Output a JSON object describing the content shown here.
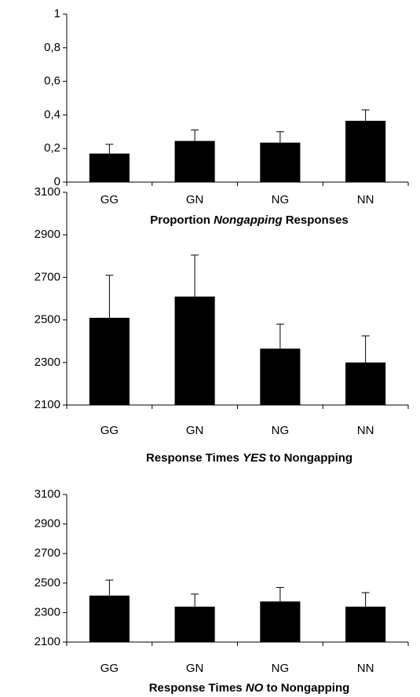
{
  "chart_data": [
    {
      "type": "bar",
      "title": [
        "Proportion",
        "Nongapping",
        "Responses"
      ],
      "title_italic": [
        false,
        true,
        false
      ],
      "categories": [
        "GG",
        "GN",
        "NG",
        "NN"
      ],
      "values": [
        0.17,
        0.245,
        0.235,
        0.365
      ],
      "errors": [
        0.055,
        0.065,
        0.065,
        0.065
      ],
      "color": "#000000",
      "ylim": [
        0,
        1
      ],
      "yticks": [
        0,
        {
          "value": 0.2,
          "label": "0,2"
        },
        {
          "value": 0.4,
          "label": "0,4"
        },
        {
          "value": 0.6,
          "label": "0,6"
        },
        {
          "value": 0.8,
          "label": "0,8"
        },
        1
      ]
    },
    {
      "type": "bar",
      "title": [
        "Response Times",
        "YES",
        "to Nongapping"
      ],
      "title_italic": [
        false,
        true,
        false
      ],
      "categories": [
        "GG",
        "GN",
        "NG",
        "NN"
      ],
      "values": [
        2510,
        2610,
        2365,
        2300
      ],
      "errors": [
        200,
        195,
        115,
        125
      ],
      "color": "#000000",
      "ylim": [
        2100,
        3100
      ],
      "yticks": [
        2100,
        2300,
        2500,
        2700,
        2900,
        3100
      ]
    },
    {
      "type": "bar",
      "title": [
        "Response Times",
        "NO",
        "to Nongapping"
      ],
      "title_italic": [
        false,
        true,
        false
      ],
      "categories": [
        "GG",
        "GN",
        "NG",
        "NN"
      ],
      "values": [
        2415,
        2340,
        2375,
        2340
      ],
      "errors": [
        105,
        85,
        95,
        95
      ],
      "color": "#000000",
      "ylim": [
        2100,
        3100
      ],
      "yticks": [
        2100,
        2300,
        2500,
        2700,
        2900,
        3100
      ]
    }
  ]
}
